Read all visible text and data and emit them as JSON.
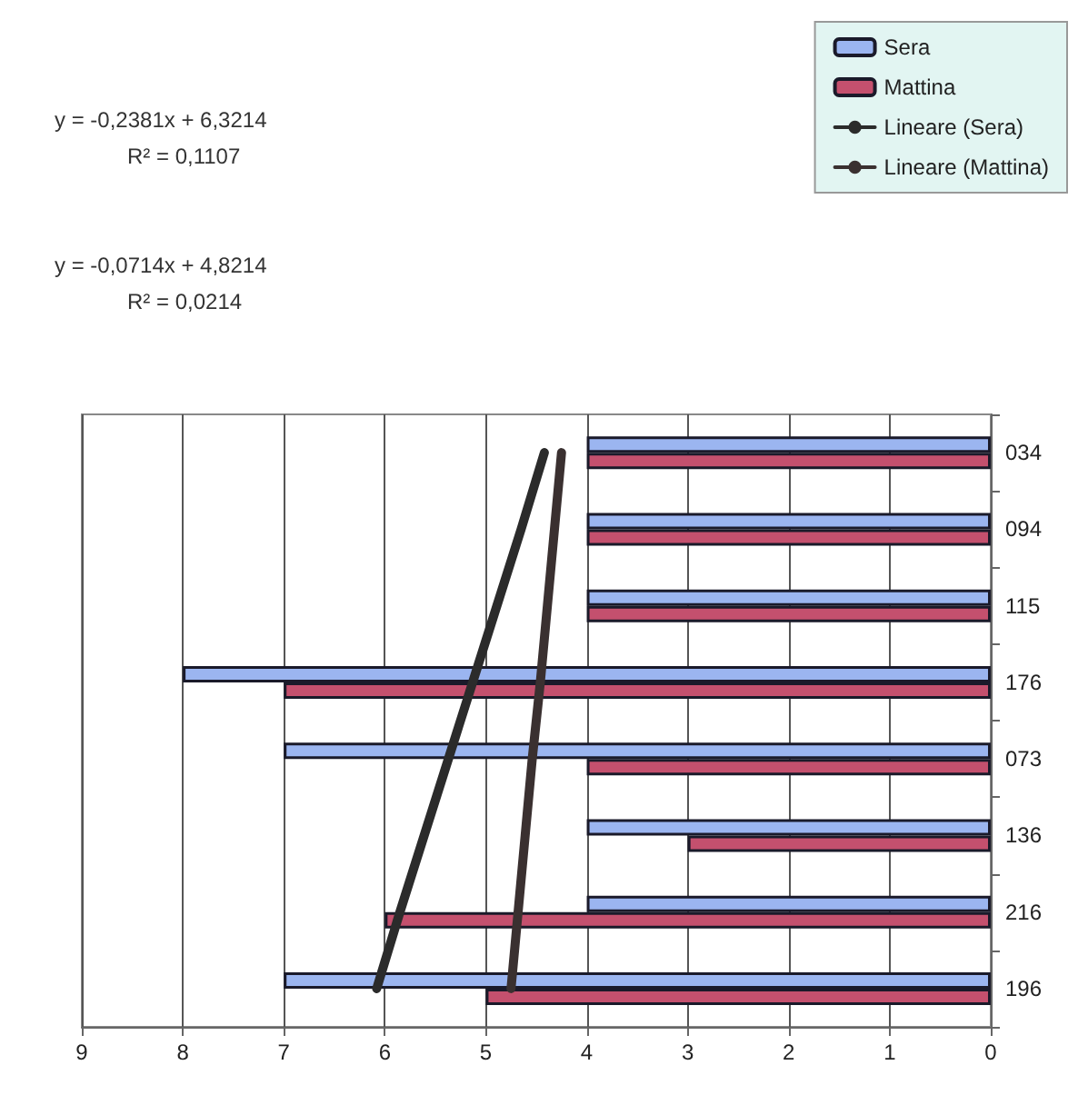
{
  "chart_data": {
    "type": "bar",
    "orientation": "horizontal",
    "categories": [
      "034",
      "094",
      "115",
      "176",
      "073",
      "136",
      "216",
      "196"
    ],
    "series": [
      {
        "name": "Sera",
        "color": "#9bb5f0",
        "values": [
          4,
          4,
          4,
          8,
          7,
          4,
          4,
          7
        ]
      },
      {
        "name": "Mattina",
        "color": "#c4506e",
        "values": [
          4,
          4,
          4,
          7,
          4,
          3,
          6,
          5
        ]
      },
      {
        "name": "Lineare (Sera)",
        "type": "line",
        "color": "#2b2b2b",
        "marker": "none",
        "values": [
          4.42,
          4.65,
          4.89,
          5.13,
          5.37,
          5.61,
          5.85,
          6.08
        ]
      },
      {
        "name": "Lineare (Mattina)",
        "type": "line",
        "color": "#3a3030",
        "marker": "none",
        "values": [
          4.25,
          4.32,
          4.39,
          4.46,
          4.54,
          4.61,
          4.68,
          4.75
        ]
      }
    ],
    "xlim": [
      9,
      0
    ],
    "xticks": [
      9,
      8,
      7,
      6,
      5,
      4,
      3,
      2,
      1,
      0
    ],
    "grid": "x",
    "legend": "top right",
    "annotations": [
      "y = -0,2381x + 6,3214",
      "R² = 0,1107",
      "y = -0,0714x + 4,8214",
      "R² = 0,0214"
    ]
  }
}
